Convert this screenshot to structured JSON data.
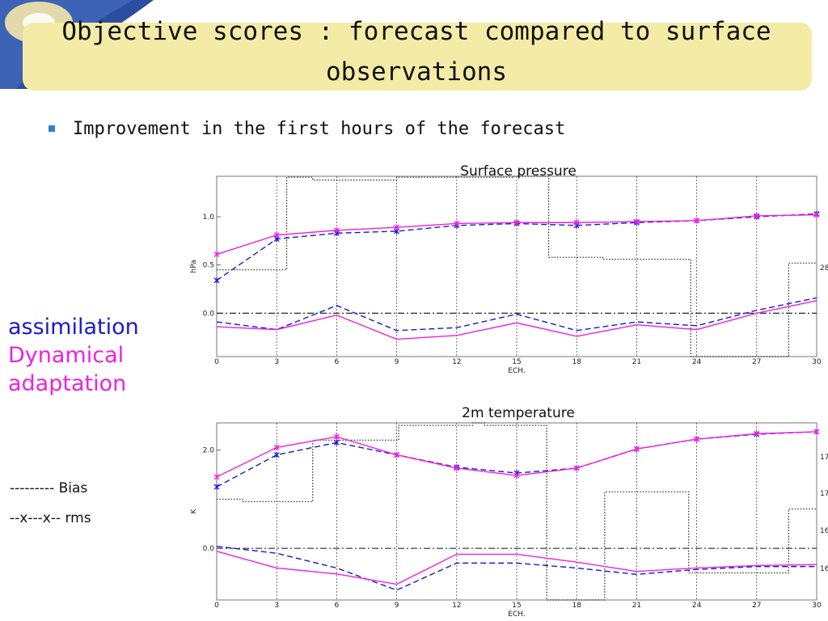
{
  "slide": {
    "title": "Objective scores : forecast compared to surface observations",
    "bullet": "Improvement in the first hours of the forecast"
  },
  "legend": {
    "assimilation": "assimilation",
    "dynamical_line1": "Dynamical",
    "dynamical_line2": "adaptation",
    "bias_key": "---------  Bias",
    "rms_key": "--x---x--   rms"
  },
  "colors": {
    "assimilation": "#1a1acc",
    "dynamical_adaptation": "#ee22dd",
    "banner": "#f4eba6",
    "bullet": "#2f7fd8"
  },
  "chart_data": [
    {
      "type": "line",
      "title": "Surface pressure",
      "xlabel": "ECH.",
      "ylabel": "hPa",
      "x": [
        0,
        3,
        6,
        9,
        12,
        15,
        18,
        21,
        24,
        27,
        30
      ],
      "xlim": [
        0,
        30
      ],
      "ylim": [
        -0.45,
        1.42
      ],
      "yticks": [
        0.0,
        0.5,
        1.0
      ],
      "ytick_labels": [
        "0.0",
        "0.5",
        "1.0"
      ],
      "right_tick_labels": [
        "28"
      ],
      "grid": true,
      "series": [
        {
          "role": "rms",
          "group": "assimilation",
          "line": "dashed",
          "marker": "x",
          "values": [
            0.34,
            0.77,
            0.83,
            0.85,
            0.91,
            0.93,
            0.91,
            0.94,
            0.96,
            1.0,
            1.03
          ]
        },
        {
          "role": "rms",
          "group": "dynamical_adaptation",
          "line": "solid",
          "marker": "x",
          "values": [
            0.61,
            0.81,
            0.86,
            0.89,
            0.93,
            0.94,
            0.94,
            0.95,
            0.96,
            1.01,
            1.02
          ]
        },
        {
          "role": "bias",
          "group": "assimilation",
          "line": "dashed",
          "marker": "none",
          "values": [
            -0.09,
            -0.17,
            0.08,
            -0.18,
            -0.15,
            -0.01,
            -0.18,
            -0.09,
            -0.13,
            0.03,
            0.16
          ]
        },
        {
          "role": "bias",
          "group": "dynamical_adaptation",
          "line": "solid",
          "marker": "none",
          "values": [
            -0.14,
            -0.17,
            -0.02,
            -0.27,
            -0.23,
            -0.1,
            -0.24,
            -0.12,
            -0.17,
            0.0,
            0.13
          ]
        }
      ],
      "counts_step": {
        "line": "dotted",
        "x": [
          0,
          3.5,
          4.8,
          9.0,
          10.3,
          14.8,
          16.6,
          19.3,
          23.7,
          28.6,
          30
        ],
        "y": [
          0.45,
          1.41,
          1.38,
          1.41,
          1.41,
          1.42,
          0.58,
          0.56,
          -0.45,
          0.52,
          0.52
        ]
      }
    },
    {
      "type": "line",
      "title": "2m temperature",
      "xlabel": "ECH.",
      "ylabel": "K",
      "x": [
        0,
        3,
        6,
        9,
        12,
        15,
        18,
        21,
        24,
        27,
        30
      ],
      "xlim": [
        0,
        30
      ],
      "ylim": [
        -1.05,
        2.55
      ],
      "yticks": [
        0.0,
        2.0
      ],
      "ytick_labels": [
        "0.0",
        "2.0"
      ],
      "right_tick_labels": [
        "17",
        "17",
        "16",
        "16"
      ],
      "grid": true,
      "series": [
        {
          "role": "rms",
          "group": "assimilation",
          "line": "dashed",
          "marker": "x",
          "values": [
            1.25,
            1.9,
            2.15,
            1.9,
            1.65,
            1.53,
            1.63,
            2.02,
            2.22,
            2.32,
            2.37
          ]
        },
        {
          "role": "rms",
          "group": "dynamical_adaptation",
          "line": "solid",
          "marker": "x",
          "values": [
            1.45,
            2.05,
            2.27,
            1.9,
            1.63,
            1.48,
            1.63,
            2.02,
            2.22,
            2.33,
            2.37
          ]
        },
        {
          "role": "bias",
          "group": "assimilation",
          "line": "dashed",
          "marker": "none",
          "values": [
            0.04,
            -0.1,
            -0.4,
            -0.85,
            -0.3,
            -0.3,
            -0.4,
            -0.53,
            -0.43,
            -0.37,
            -0.37
          ]
        },
        {
          "role": "bias",
          "group": "dynamical_adaptation",
          "line": "solid",
          "marker": "none",
          "values": [
            -0.06,
            -0.4,
            -0.52,
            -0.73,
            -0.12,
            -0.12,
            -0.28,
            -0.47,
            -0.4,
            -0.35,
            -0.33
          ]
        }
      ],
      "counts_step": {
        "line": "dotted",
        "x": [
          0,
          1.3,
          4.8,
          9.1,
          12.8,
          13.4,
          16.5,
          19.4,
          23.6,
          28.6,
          30
        ],
        "y": [
          1.0,
          0.95,
          2.2,
          2.5,
          2.55,
          2.5,
          -1.05,
          1.15,
          -0.5,
          0.8,
          0.8
        ]
      }
    }
  ]
}
